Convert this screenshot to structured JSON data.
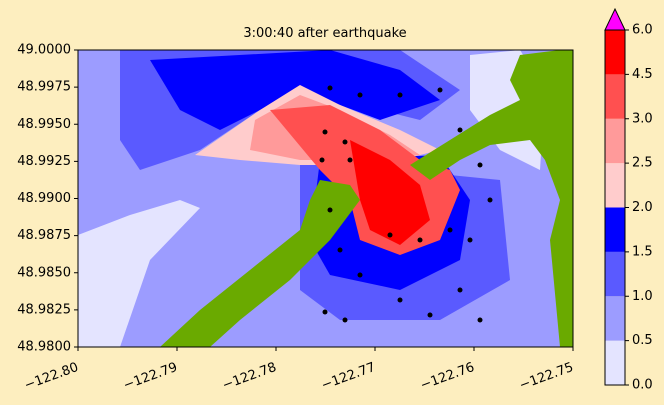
{
  "chart_data": {
    "type": "contour",
    "title": "3:00:40 after earthquake",
    "xlim": [
      -122.8,
      -122.75
    ],
    "xticks": [
      {
        "value": -122.8,
        "label": "−122.80"
      },
      {
        "value": -122.79,
        "label": "−122.79"
      },
      {
        "value": -122.78,
        "label": "−122.78"
      },
      {
        "value": -122.77,
        "label": "−122.77"
      },
      {
        "value": -122.76,
        "label": "−122.76"
      },
      {
        "value": -122.75,
        "label": "−122.75"
      }
    ],
    "ylim": [
      48.98,
      49.0
    ],
    "yticks": [
      {
        "value": 48.98,
        "label": "48.9800"
      },
      {
        "value": 48.9825,
        "label": "48.9825"
      },
      {
        "value": 48.985,
        "label": "48.9850"
      },
      {
        "value": 48.9875,
        "label": "48.9875"
      },
      {
        "value": 48.99,
        "label": "48.9900"
      },
      {
        "value": 48.9925,
        "label": "48.9925"
      },
      {
        "value": 48.995,
        "label": "48.9950"
      },
      {
        "value": 48.9975,
        "label": "48.9975"
      },
      {
        "value": 49.0,
        "label": "49.0000"
      }
    ],
    "colorbar": {
      "levels": [
        {
          "value": 0,
          "label": "0.0"
        },
        0.5,
        {
          "value": 1,
          "label": "1.0"
        },
        1.5,
        {
          "value": 2,
          "label": "2.0"
        },
        2.5,
        {
          "value": 3,
          "label": "3.0"
        },
        4.5,
        {
          "value": 6,
          "label": "6.0"
        }
      ],
      "colors": [
        "#e4e4ff",
        "#9c9cff",
        "#5a5aff",
        "#0000ff",
        "#ffcccc",
        "#ff9a9a",
        "#ff5050",
        "#ff0000"
      ],
      "extend_color": "#ff00ff"
    }
  }
}
